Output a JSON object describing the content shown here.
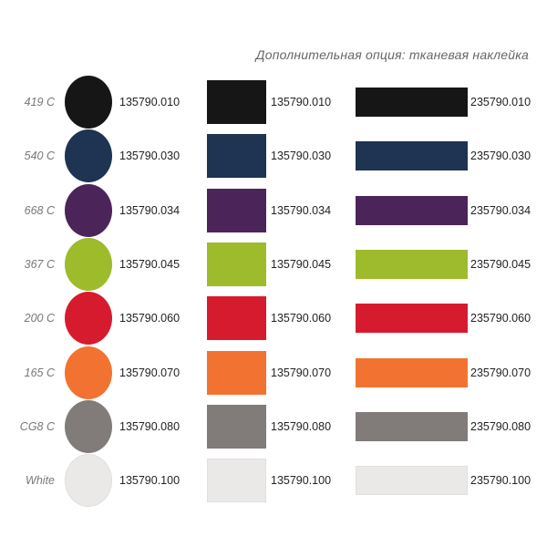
{
  "title": "Дополнительная опция: тканевая наклейка",
  "rows": [
    {
      "label": "419 C",
      "color": "#161616",
      "code1": "135790.010",
      "code2": "135790.010",
      "code3": "235790.010"
    },
    {
      "label": "540 C",
      "color": "#1f3352",
      "code1": "135790.030",
      "code2": "135790.030",
      "code3": "235790.030"
    },
    {
      "label": "668 C",
      "color": "#4b2559",
      "code1": "135790.034",
      "code2": "135790.034",
      "code3": "235790.034"
    },
    {
      "label": "367 C",
      "color": "#9dbb2b",
      "code1": "135790.045",
      "code2": "135790.045",
      "code3": "235790.045"
    },
    {
      "label": "200 C",
      "color": "#d71b2f",
      "code1": "135790.060",
      "code2": "135790.060",
      "code3": "235790.060"
    },
    {
      "label": "165 C",
      "color": "#f27331",
      "code1": "135790.070",
      "code2": "135790.070",
      "code3": "235790.070"
    },
    {
      "label": "CG8 C",
      "color": "#817c79",
      "code1": "135790.080",
      "code2": "135790.080",
      "code3": "235790.080"
    },
    {
      "label": "White",
      "color": "#ebe8e8",
      "code1": "135790.100",
      "code2": "135790.100",
      "code3": "235790.100"
    }
  ]
}
